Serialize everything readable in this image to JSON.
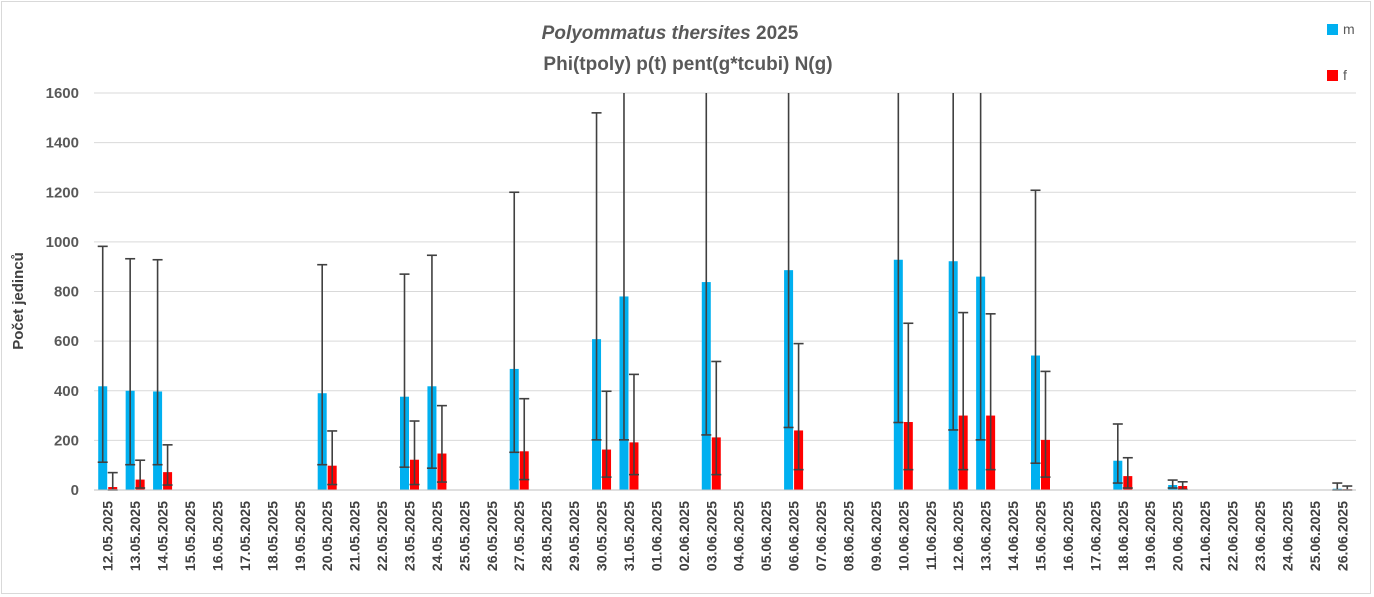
{
  "chart_data": {
    "type": "bar",
    "title_species": "Polyommatus thersites",
    "title_year": "2025",
    "subtitle": "Phi(tpoly) p(t) pent(g*tcubi) N(g)",
    "xlabel": "",
    "ylabel": "Počet jedinců",
    "ylim": [
      0,
      1600
    ],
    "yticks": [
      "0",
      "200",
      "400",
      "600",
      "800",
      "1000",
      "1200",
      "1400",
      "1600"
    ],
    "grid": true,
    "legend_position": "top-right",
    "categories": [
      "12.05.2025",
      "13.05.2025",
      "14.05.2025",
      "15.05.2025",
      "16.05.2025",
      "17.05.2025",
      "18.05.2025",
      "19.05.2025",
      "20.05.2025",
      "21.05.2025",
      "22.05.2025",
      "23.05.2025",
      "24.05.2025",
      "25.05.2025",
      "26.05.2025",
      "27.05.2025",
      "28.05.2025",
      "29.05.2025",
      "30.05.2025",
      "31.05.2025",
      "01.06.2025",
      "02.06.2025",
      "03.06.2025",
      "04.06.2025",
      "05.06.2025",
      "06.06.2025",
      "07.06.2025",
      "08.06.2025",
      "09.06.2025",
      "10.06.2025",
      "11.06.2025",
      "12.06.2025",
      "13.06.2025",
      "14.06.2025",
      "15.06.2025",
      "16.06.2025",
      "17.06.2025",
      "18.06.2025",
      "19.06.2025",
      "20.06.2025",
      "21.06.2025",
      "22.06.2025",
      "23.06.2025",
      "24.06.2025",
      "25.06.2025",
      "26.06.2025"
    ],
    "series": [
      {
        "name": "m",
        "color": "#00b0f0",
        "values": [
          418,
          400,
          397,
          null,
          null,
          null,
          null,
          null,
          390,
          null,
          null,
          376,
          418,
          null,
          null,
          488,
          null,
          null,
          608,
          780,
          null,
          null,
          838,
          null,
          null,
          886,
          null,
          null,
          null,
          928,
          null,
          922,
          860,
          null,
          542,
          null,
          null,
          118,
          null,
          20,
          null,
          null,
          null,
          null,
          null,
          5
        ],
        "lower": [
          112,
          102,
          102,
          null,
          null,
          null,
          null,
          null,
          102,
          null,
          null,
          92,
          88,
          null,
          null,
          152,
          null,
          null,
          202,
          202,
          null,
          null,
          222,
          null,
          null,
          252,
          null,
          null,
          null,
          272,
          null,
          242,
          202,
          null,
          108,
          null,
          null,
          28,
          null,
          8,
          null,
          null,
          null,
          null,
          null,
          0
        ],
        "upper": [
          982,
          932,
          928,
          null,
          null,
          null,
          null,
          null,
          908,
          null,
          null,
          870,
          946,
          null,
          null,
          1200,
          null,
          null,
          1520,
          1600,
          null,
          null,
          1600,
          null,
          null,
          1600,
          null,
          null,
          null,
          1600,
          null,
          1600,
          1600,
          null,
          1208,
          null,
          null,
          266,
          null,
          40,
          null,
          null,
          null,
          null,
          null,
          28
        ]
      },
      {
        "name": "f",
        "color": "#ff0000",
        "values": [
          12,
          42,
          72,
          null,
          null,
          null,
          null,
          null,
          98,
          null,
          null,
          122,
          147,
          null,
          null,
          156,
          null,
          null,
          163,
          192,
          null,
          null,
          212,
          null,
          null,
          240,
          null,
          null,
          null,
          274,
          null,
          300,
          300,
          null,
          202,
          null,
          null,
          56,
          null,
          16,
          null,
          null,
          null,
          null,
          null,
          3
        ],
        "lower": [
          0,
          8,
          20,
          null,
          null,
          null,
          null,
          null,
          22,
          null,
          null,
          22,
          32,
          null,
          null,
          42,
          null,
          null,
          52,
          62,
          null,
          null,
          62,
          null,
          null,
          82,
          null,
          null,
          null,
          82,
          null,
          82,
          82,
          null,
          52,
          null,
          null,
          8,
          null,
          2,
          null,
          null,
          null,
          null,
          null,
          0
        ],
        "upper": [
          70,
          120,
          182,
          null,
          null,
          null,
          null,
          null,
          238,
          null,
          null,
          278,
          340,
          null,
          null,
          368,
          null,
          null,
          398,
          466,
          null,
          null,
          518,
          null,
          null,
          590,
          null,
          null,
          null,
          672,
          null,
          715,
          710,
          null,
          478,
          null,
          null,
          130,
          null,
          33,
          null,
          null,
          null,
          null,
          null,
          16
        ]
      }
    ]
  }
}
